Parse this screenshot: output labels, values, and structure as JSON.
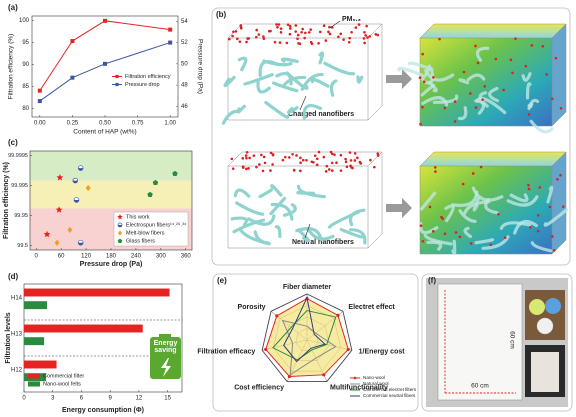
{
  "chart_data": [
    {
      "type": "line",
      "label": "(a)",
      "x_label": "Content of HAP (wt%)",
      "y_label": "Filtration efficiency (%)",
      "y2_label": "Pressure drop (Pa)",
      "x": [
        0,
        0.25,
        0.5,
        1
      ],
      "xlim": [
        -0.06,
        1.06
      ],
      "xticks": [
        {
          "value": 0,
          "label": "0.00"
        },
        0.25,
        {
          "value": 0.5,
          "label": "0.50"
        },
        0.75,
        {
          "value": 1,
          "label": "1.00"
        }
      ],
      "ylim": [
        78,
        101
      ],
      "yticks": [
        80,
        85,
        90,
        95,
        100
      ],
      "y2lim": [
        45,
        54.5
      ],
      "y2ticks": [
        46,
        48,
        50,
        52,
        54
      ],
      "legend": "center right",
      "series": [
        {
          "name": "Filtration efficiency",
          "color": "#e52421",
          "marker": "square",
          "values": [
            84,
            95.3,
            99.9,
            97.9
          ]
        },
        {
          "name": "Pressure drop",
          "color": "#3a56a5",
          "marker": "square",
          "axis": "y2",
          "values": [
            46.5,
            48.7,
            50,
            52
          ]
        }
      ]
    },
    {
      "type": "scatter",
      "label": "(c)",
      "x_label": "Pressure drop (Pa)",
      "y_label": "Filtration efficiency (%)",
      "yscale": "penetration-log",
      "xlim": [
        -15,
        375
      ],
      "xticks": [
        0,
        60,
        120,
        180,
        240,
        300,
        360
      ],
      "ylim": [
        99.3,
        99.99965
      ],
      "yticks": [
        99.5,
        99.95,
        99.995,
        99.9995
      ],
      "legend": "lower right",
      "series": [
        {
          "name": "This work",
          "color": "#e52421",
          "marker": "star",
          "x": [
            26,
            55,
            57
          ],
          "values": [
            99.79,
            99.968,
            99.9973
          ]
        },
        {
          "name": "Electrospun fibers¹⁴˒²⁹˒³⁴",
          "color": "#3a56a5",
          "marker": "half-circle",
          "x": [
            107,
            94,
            97,
            107
          ],
          "values": [
            99.9987,
            99.9966,
            99.985,
            99.6
          ]
        },
        {
          "name": "Melt-blow fibers",
          "color": "#f39c1e",
          "marker": "diamond",
          "x": [
            50,
            81,
            125
          ],
          "values": [
            99.6,
            99.85,
            99.994
          ]
        },
        {
          "name": "Glass fibers",
          "color": "#2b8a3e",
          "marker": "pentagon",
          "x": [
            274,
            287,
            334
          ],
          "values": [
            99.99,
            99.996,
            99.998
          ]
        }
      ]
    },
    {
      "type": "hbar",
      "label": "(d)",
      "x_label": "Energy consumption (Φ)",
      "y_label": "Filtration levels",
      "categories": [
        "H14",
        "H13",
        "H12"
      ],
      "xlim": [
        0,
        16.5
      ],
      "xticks": [
        0,
        3,
        6,
        9,
        12,
        15
      ],
      "legend": "lower left",
      "annotation": [
        "Energy",
        "saving"
      ],
      "series": [
        {
          "name": "Commercial filter",
          "color": "#e52421",
          "values": [
            15.2,
            12.4,
            3.4
          ]
        },
        {
          "name": "Nano-wool felts",
          "color": "#2b8a3e",
          "values": [
            2.4,
            2.1,
            2.3
          ]
        }
      ]
    },
    {
      "type": "radar",
      "label": "(e)",
      "axes": [
        "Fiber diameter",
        "Electret effect",
        "1/Energy cost",
        "Multifunctionality",
        "Cost efficiency",
        "Filtration efficacy",
        "Porosity"
      ],
      "rlim": [
        0,
        5
      ],
      "legend": "lower right",
      "series": [
        {
          "name": "Nano-wool",
          "color": "#e52421",
          "fill": "#f3e27a",
          "marker": "circle",
          "values": [
            4.5,
            4.3,
            4.6,
            4.2,
            4.4,
            4.6,
            4.2
          ]
        },
        {
          "name": "Natural wool",
          "color": "#8a8a8a",
          "values": [
            1.5,
            1.2,
            3.2,
            2.2,
            4.2,
            1.6,
            3.4
          ]
        },
        {
          "name": "Commercial electret filters",
          "color": "#2b8a3e",
          "values": [
            3.2,
            4.0,
            2.2,
            1.2,
            2.4,
            3.8,
            2.2
          ]
        },
        {
          "name": "Commercial neutral fibers",
          "color": "#2c3e7a",
          "values": [
            4.6,
            1.0,
            2.0,
            1.0,
            2.6,
            2.6,
            2.0
          ]
        }
      ]
    }
  ],
  "illustrations": {
    "b": {
      "label": "(b)",
      "particles": "PM₀.₃",
      "upper": "Charged nanofibers",
      "lower": "Neutral nanofibers"
    },
    "f": {
      "label": "(f)",
      "height": "60 cm",
      "width": "60 cm"
    }
  }
}
